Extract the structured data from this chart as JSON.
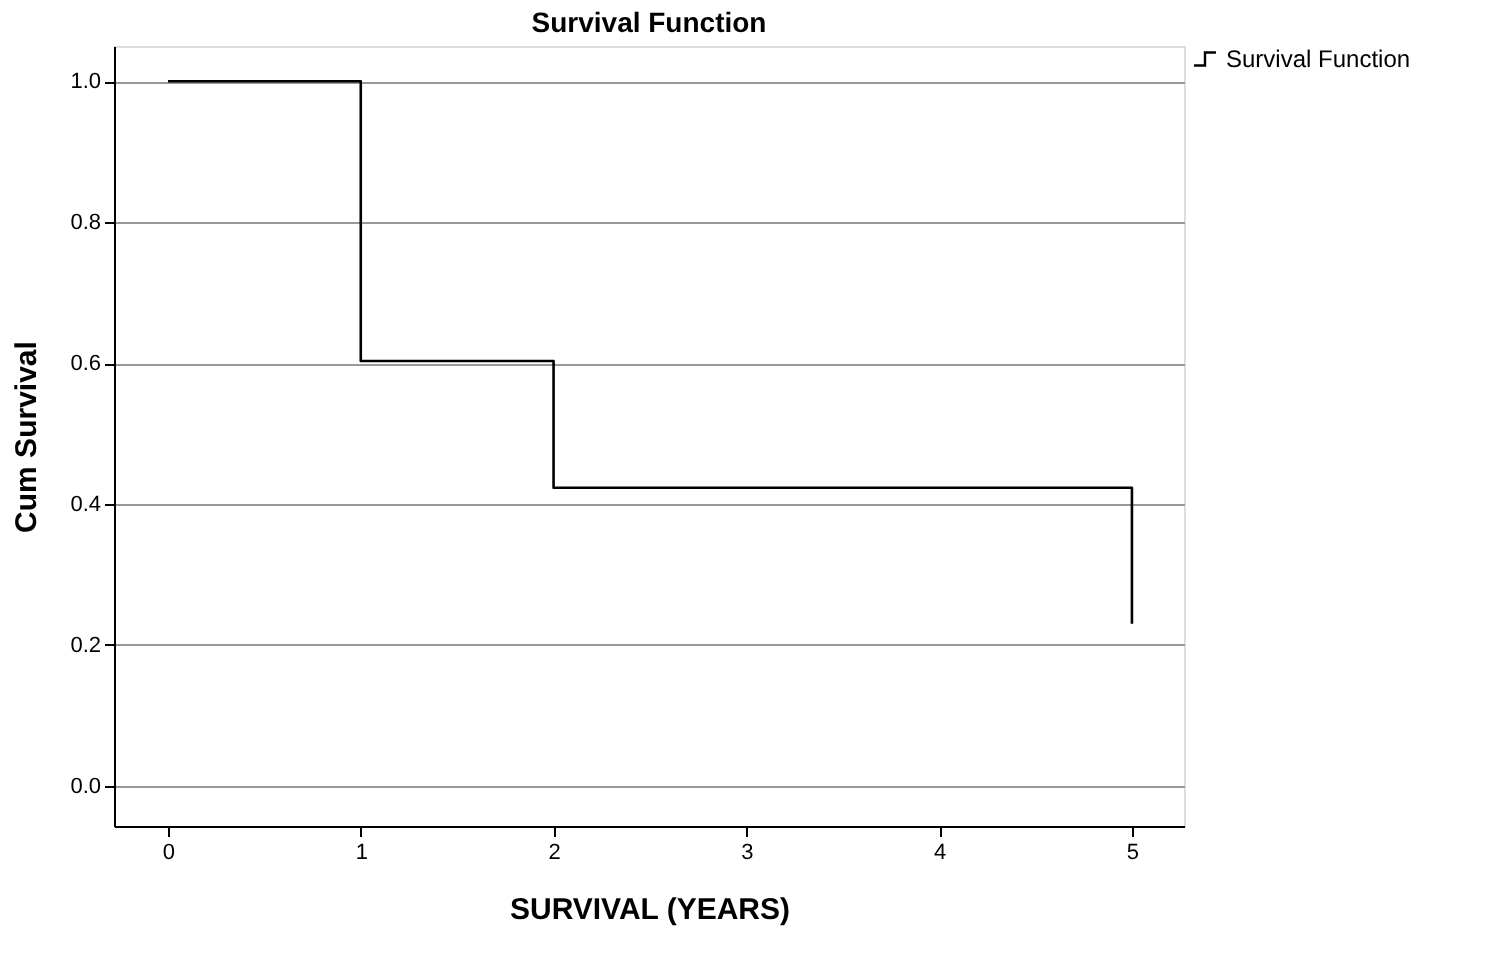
{
  "chart_data": {
    "type": "step",
    "title": "Survival Function",
    "xlabel": "SURVIVAL (YEARS)",
    "ylabel": "Cum Survival",
    "x": [
      0,
      1,
      2,
      5
    ],
    "series": [
      {
        "name": "Survival Function",
        "color": "#000000",
        "values": [
          1.0,
          0.603,
          0.423,
          0.23
        ]
      }
    ],
    "xlim": [
      -0.28,
      5.27
    ],
    "xticks": [
      0,
      1,
      2,
      3,
      4,
      5
    ],
    "ylim": [
      -0.057,
      1.05
    ],
    "yticks": [
      {
        "value": 0,
        "label": "0.0"
      },
      {
        "value": 0.2,
        "label": "0.2"
      },
      {
        "value": 0.4,
        "label": "0.4"
      },
      {
        "value": 0.6,
        "label": "0.6"
      },
      {
        "value": 0.8,
        "label": "0.8"
      },
      {
        "value": 1,
        "label": "1.0"
      }
    ],
    "grid": "y",
    "legend": "top right",
    "marker": "none",
    "line_style": "solid"
  }
}
